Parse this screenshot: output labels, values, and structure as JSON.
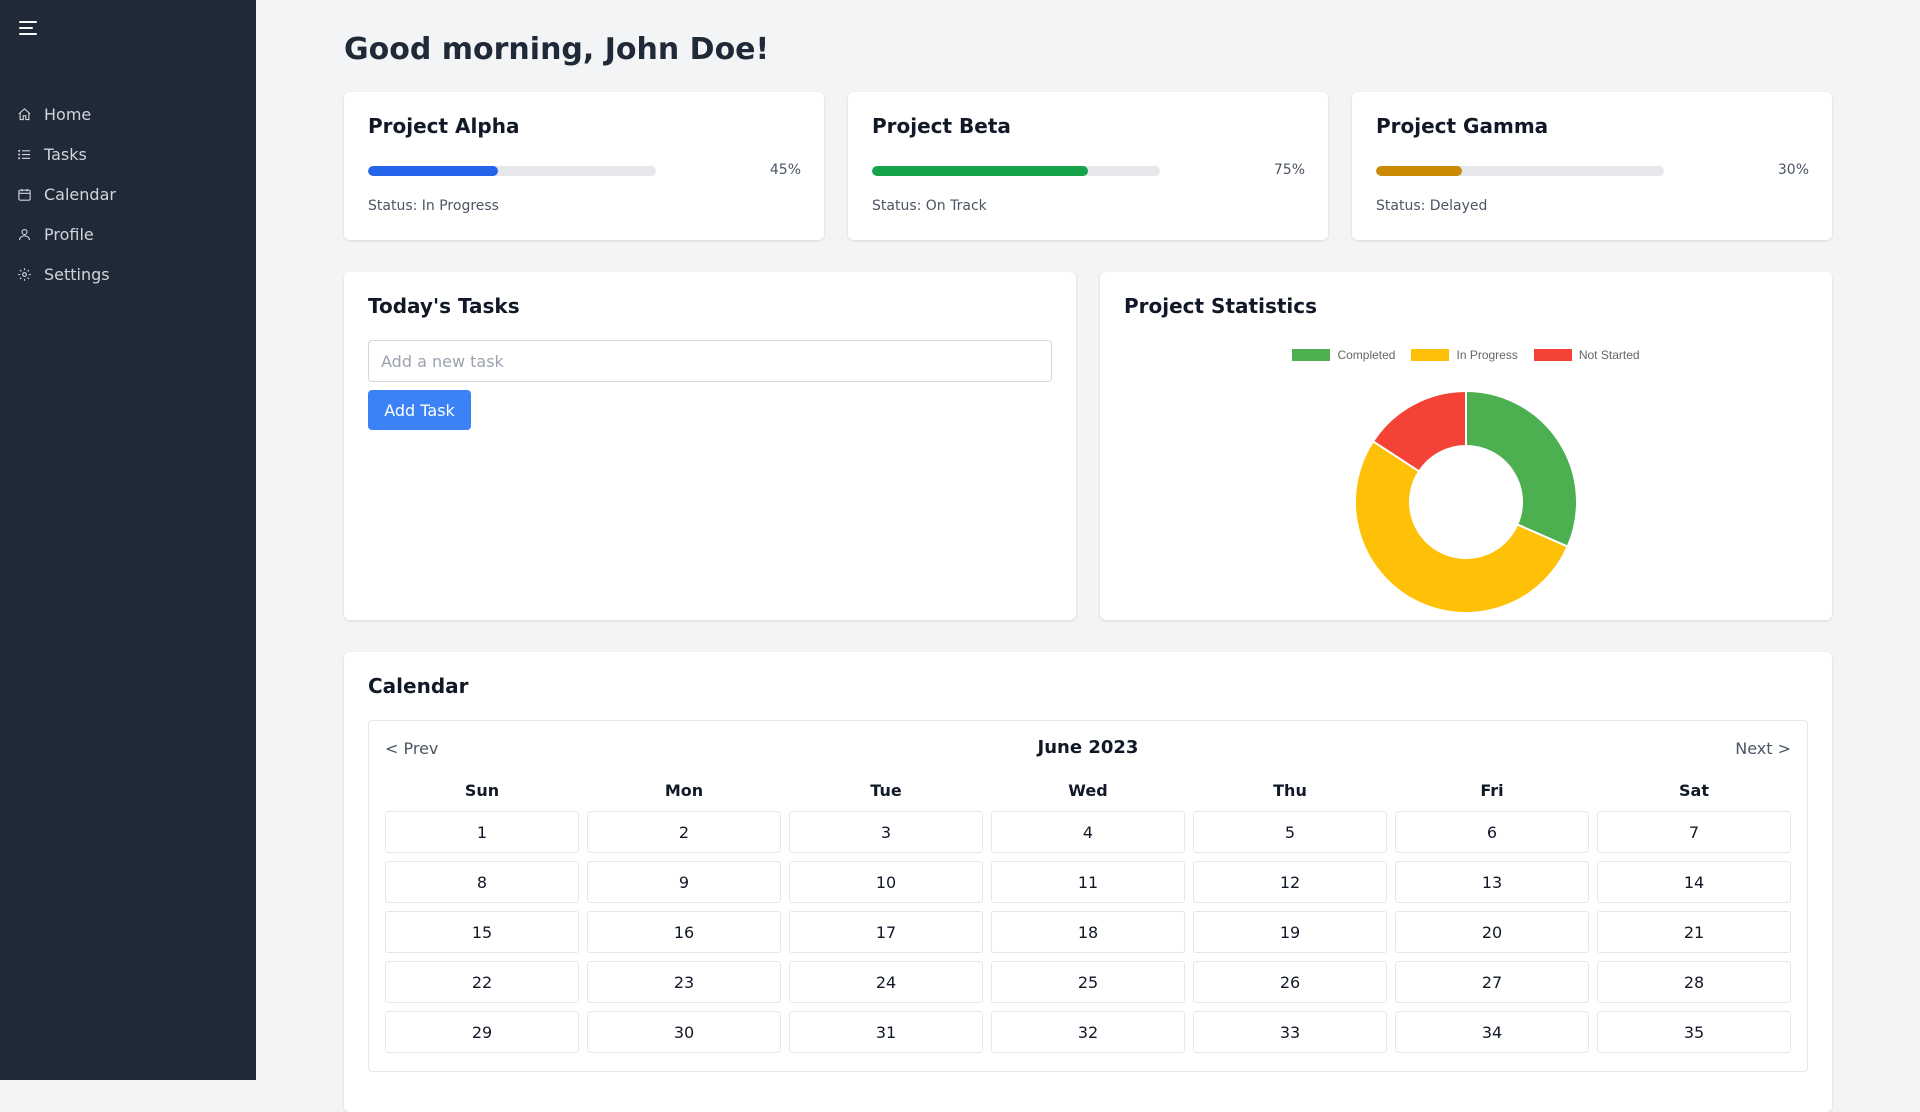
{
  "sidebar": {
    "items": [
      {
        "label": "Home",
        "icon": "home-icon"
      },
      {
        "label": "Tasks",
        "icon": "list-icon"
      },
      {
        "label": "Calendar",
        "icon": "calendar-icon"
      },
      {
        "label": "Profile",
        "icon": "user-icon"
      },
      {
        "label": "Settings",
        "icon": "gear-icon"
      }
    ]
  },
  "greeting": "Good morning, John Doe!",
  "projects": [
    {
      "name": "Project Alpha",
      "progress": 45,
      "progress_label": "45%",
      "status": "Status: In Progress",
      "color": "#2563eb"
    },
    {
      "name": "Project Beta",
      "progress": 75,
      "progress_label": "75%",
      "status": "Status: On Track",
      "color": "#16a34a"
    },
    {
      "name": "Project Gamma",
      "progress": 30,
      "progress_label": "30%",
      "status": "Status: Delayed",
      "color": "#ca8a04"
    }
  ],
  "tasks": {
    "title": "Today's Tasks",
    "input_placeholder": "Add a new task",
    "input_value": "",
    "add_button": "Add Task"
  },
  "statistics": {
    "title": "Project Statistics"
  },
  "chart_data": {
    "type": "pie",
    "categories": [
      "Completed",
      "In Progress",
      "Not Started"
    ],
    "values": [
      30,
      50,
      15
    ],
    "colors": [
      "#4caf50",
      "#ffc107",
      "#f44336"
    ],
    "legend": "top"
  },
  "calendar": {
    "title": "Calendar",
    "prev_label": "< Prev",
    "next_label": "Next >",
    "month_label": "June 2023",
    "weekdays": [
      "Sun",
      "Mon",
      "Tue",
      "Wed",
      "Thu",
      "Fri",
      "Sat"
    ],
    "days": [
      "1",
      "2",
      "3",
      "4",
      "5",
      "6",
      "7",
      "8",
      "9",
      "10",
      "11",
      "12",
      "13",
      "14",
      "15",
      "16",
      "17",
      "18",
      "19",
      "20",
      "21",
      "22",
      "23",
      "24",
      "25",
      "26",
      "27",
      "28",
      "29",
      "30",
      "31",
      "32",
      "33",
      "34",
      "35"
    ]
  }
}
